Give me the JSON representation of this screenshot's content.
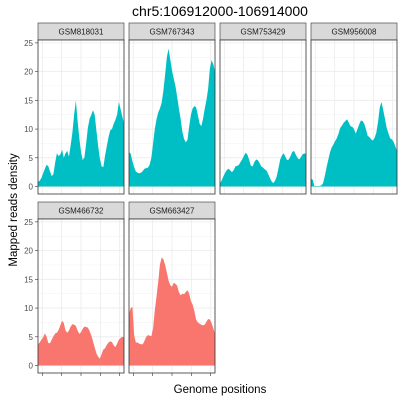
{
  "chart_data": {
    "type": "area",
    "title": "chr5:106912000-106914000",
    "xlabel": "Genome positions",
    "ylabel": "Mapped reads density",
    "ylim": [
      -1.3,
      25.5
    ],
    "yticks": [
      0,
      5,
      10,
      15,
      20,
      25
    ],
    "x_tick_count": 5,
    "grid": true,
    "legend": "none",
    "colors": {
      "upper_row": "#00BFC4",
      "lower_row": "#F8766D",
      "strip": "#d9d9d9",
      "grid": "#ebebeb"
    },
    "x_positions": [
      0,
      0.02,
      0.04,
      0.06,
      0.08,
      0.1,
      0.12,
      0.14,
      0.16,
      0.18,
      0.2,
      0.22,
      0.24,
      0.26,
      0.28,
      0.3,
      0.32,
      0.34,
      0.36,
      0.38,
      0.4,
      0.42,
      0.44,
      0.46,
      0.48,
      0.5,
      0.52,
      0.54,
      0.56,
      0.58,
      0.6,
      0.62,
      0.64,
      0.66,
      0.68,
      0.7,
      0.72,
      0.74,
      0.76,
      0.78,
      0.8,
      0.82,
      0.84,
      0.86,
      0.88,
      0.9,
      0.92,
      0.94,
      0.96,
      0.98,
      1
    ],
    "series": [
      {
        "name": "GSM818031",
        "row": 0,
        "col": 0,
        "color": "#00BFC4",
        "values": [
          0.8,
          1,
          1.5,
          2.3,
          3.1,
          3.8,
          3.5,
          2.6,
          1.8,
          2.2,
          4.2,
          5.8,
          5.3,
          5.6,
          6.4,
          5,
          5.8,
          6.2,
          5.2,
          7.2,
          9.4,
          12.5,
          15,
          11.5,
          8.5,
          6,
          4.6,
          5.1,
          7.5,
          10.2,
          11.8,
          12.5,
          13.3,
          12.4,
          9.6,
          7,
          4.8,
          3.5,
          3.4,
          5.4,
          7,
          8.6,
          9.8,
          10,
          10.9,
          11.6,
          12.5,
          14.7,
          13.5,
          12.2,
          11
        ]
      },
      {
        "name": "GSM767343",
        "row": 0,
        "col": 1,
        "color": "#00BFC4",
        "values": [
          6,
          5.7,
          4.4,
          3.4,
          2.6,
          2.4,
          2.3,
          2.4,
          2.7,
          3.1,
          3.2,
          3.3,
          3.8,
          5,
          7.5,
          10,
          11.7,
          12.9,
          13.6,
          14.6,
          16.7,
          19.5,
          22.5,
          24,
          22.1,
          20.2,
          18.8,
          17.5,
          15.6,
          13.6,
          11.8,
          9.6,
          8.3,
          7.7,
          8.1,
          10.5,
          12.5,
          13.6,
          14,
          13.8,
          12.5,
          11,
          10.5,
          11.7,
          13.5,
          15,
          17,
          20.5,
          22,
          21.3,
          20
        ]
      },
      {
        "name": "GSM753429",
        "row": 0,
        "col": 2,
        "color": "#00BFC4",
        "values": [
          0.5,
          1.1,
          1.8,
          2.4,
          2.9,
          3.1,
          2.8,
          2.5,
          2.9,
          3.5,
          3.6,
          3.8,
          4.3,
          4.8,
          5.4,
          5.9,
          5.5,
          4.6,
          3.6,
          3.5,
          4.3,
          4.7,
          4.6,
          4.1,
          3.5,
          3.3,
          3,
          2.8,
          2.2,
          1.5,
          0.9,
          0.6,
          1,
          1.8,
          3.2,
          4.7,
          5.4,
          5.8,
          5.2,
          4.6,
          4.7,
          5.3,
          6,
          6.2,
          5.6,
          5,
          4.7,
          5.1,
          5.6,
          5.8,
          5.6
        ]
      },
      {
        "name": "GSM956008",
        "row": 0,
        "col": 3,
        "color": "#00BFC4",
        "values": [
          1.3,
          1.2,
          0.1,
          0.1,
          0.1,
          0.1,
          0.2,
          0.6,
          1.8,
          3.3,
          4.6,
          5.9,
          6.8,
          7.3,
          7.9,
          8.4,
          9.2,
          10.2,
          10.6,
          11.1,
          11.4,
          11.7,
          11.1,
          10.5,
          10.4,
          10,
          9.2,
          10,
          10.8,
          11.5,
          11.4,
          10.9,
          9.9,
          8.8,
          8.6,
          8.2,
          8,
          8.5,
          9.4,
          11.3,
          13.8,
          14.7,
          13.3,
          11.8,
          10.2,
          9.3,
          8.4,
          8.2,
          7.8,
          7,
          6.2
        ]
      },
      {
        "name": "GSM466732",
        "row": 1,
        "col": 0,
        "color": "#F8766D",
        "values": [
          3.7,
          4,
          4.5,
          4.9,
          5.6,
          5,
          3.9,
          3.9,
          4.5,
          5.1,
          5.6,
          5.7,
          6.2,
          7,
          7.8,
          7.4,
          6.1,
          5.7,
          6.1,
          6.8,
          7.2,
          7.1,
          6.9,
          6.1,
          5.5,
          5.8,
          6.4,
          6.8,
          6.7,
          6.6,
          6,
          5.2,
          4.2,
          3.1,
          2.1,
          1.5,
          1.2,
          2,
          2.8,
          3,
          3.6,
          4,
          4.2,
          4.1,
          3.5,
          3.2,
          3.8,
          4.5,
          4.8,
          5,
          4.9
        ]
      },
      {
        "name": "GSM663427",
        "row": 1,
        "col": 1,
        "color": "#F8766D",
        "values": [
          9,
          10,
          10.2,
          5.3,
          4,
          4,
          3.8,
          3.7,
          3.7,
          4.3,
          5,
          5.3,
          5.2,
          5.1,
          6.5,
          9.6,
          12,
          14.6,
          17.6,
          18.8,
          18.5,
          17.5,
          16.2,
          14.8,
          14,
          13.7,
          14.4,
          14.2,
          13.9,
          12.8,
          12.2,
          12.5,
          12.4,
          12.8,
          13.1,
          12.5,
          11.2,
          10.6,
          9.5,
          8,
          7.5,
          7.3,
          7.1,
          7,
          7.1,
          7.6,
          8.1,
          8,
          7.4,
          6.5,
          5.5
        ]
      }
    ]
  }
}
